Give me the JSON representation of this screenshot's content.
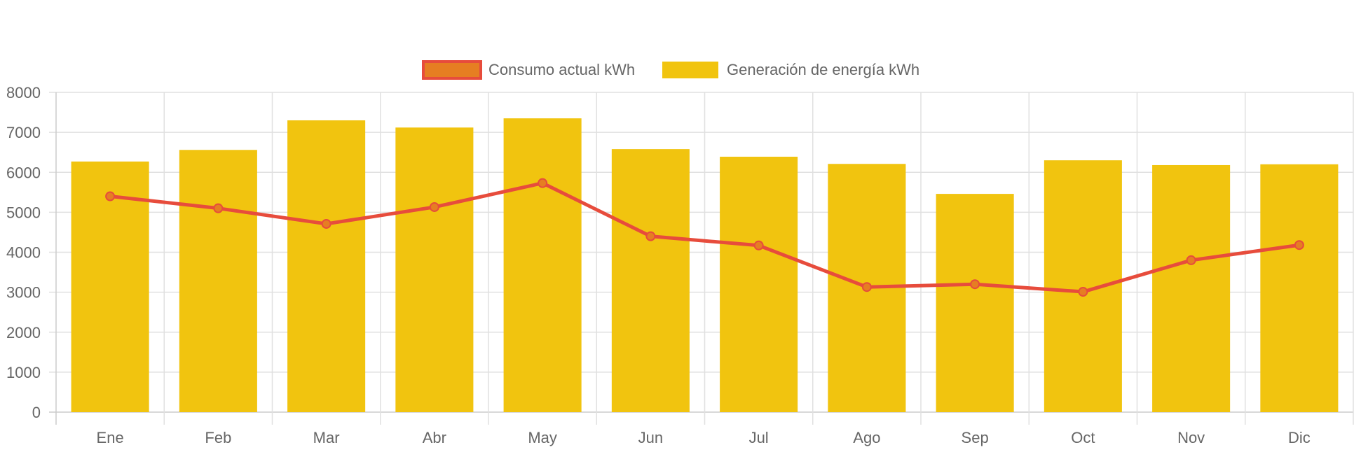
{
  "chart_data": {
    "type": "bar",
    "title": "",
    "xlabel": "",
    "ylabel": "",
    "categories": [
      "Ene",
      "Feb",
      "Mar",
      "Abr",
      "May",
      "Jun",
      "Jul",
      "Ago",
      "Sep",
      "Oct",
      "Nov",
      "Dic"
    ],
    "ylim": [
      0,
      8000
    ],
    "yticks": [
      0,
      1000,
      2000,
      3000,
      4000,
      5000,
      6000,
      7000,
      8000
    ],
    "grid": true,
    "legend_position": "top-center",
    "series": [
      {
        "name": "Consumo actual kWh",
        "type": "line",
        "color": "#e74c3c",
        "point_fill": "#e67e22",
        "values": [
          5400,
          5100,
          4710,
          5130,
          5730,
          4400,
          4170,
          3130,
          3200,
          3010,
          3800,
          4180
        ]
      },
      {
        "name": "Generación de energía kWh",
        "type": "bar",
        "color": "#f1c40f",
        "values": [
          6270,
          6560,
          7300,
          7120,
          7350,
          6580,
          6390,
          6210,
          5460,
          6300,
          6180,
          6200
        ]
      }
    ]
  }
}
